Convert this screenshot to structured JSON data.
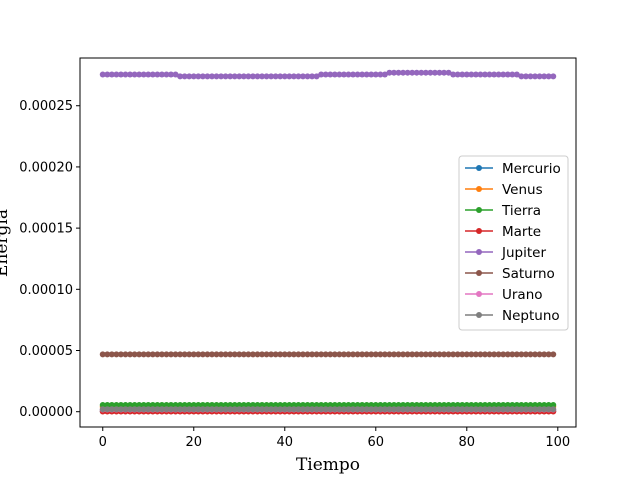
{
  "chart_data": {
    "type": "line",
    "xlabel": "Tiempo",
    "ylabel": "Energía",
    "xlim": [
      -5,
      104
    ],
    "ylim": [
      -1.25e-05,
      0.000289
    ],
    "xticks": [
      0,
      20,
      40,
      60,
      80,
      100
    ],
    "yticks": [
      0.0,
      5e-05,
      0.0001,
      0.00015,
      0.0002,
      0.00025
    ],
    "xtick_labels": [
      "0",
      "20",
      "40",
      "60",
      "80",
      "100"
    ],
    "ytick_labels": [
      "0.00000",
      "0.00005",
      "0.00010",
      "0.00015",
      "0.00020",
      "0.00025"
    ],
    "grid": false,
    "legend_position": "center-right",
    "marker": "circle",
    "x": {
      "start": 0,
      "end": 99,
      "step": 1
    },
    "series": [
      {
        "name": "Mercurio",
        "color": "#1f77b4",
        "value": 5e-07
      },
      {
        "name": "Venus",
        "color": "#ff7f0e",
        "value": 4e-06
      },
      {
        "name": "Tierra",
        "color": "#2ca02c",
        "value": 5.5e-06
      },
      {
        "name": "Marte",
        "color": "#d62728",
        "value": 2e-07
      },
      {
        "name": "Jupiter",
        "color": "#9467bd",
        "segments": [
          {
            "from": 0,
            "to": 16,
            "value": 0.0002755
          },
          {
            "from": 17,
            "to": 47,
            "value": 0.000274
          },
          {
            "from": 48,
            "to": 62,
            "value": 0.0002755
          },
          {
            "from": 63,
            "to": 76,
            "value": 0.000277
          },
          {
            "from": 77,
            "to": 91,
            "value": 0.0002755
          },
          {
            "from": 92,
            "to": 99,
            "value": 0.000274
          }
        ]
      },
      {
        "name": "Saturno",
        "color": "#8c564b",
        "value": 4.68e-05
      },
      {
        "name": "Urano",
        "color": "#e377c2",
        "value": 1.8e-06
      },
      {
        "name": "Neptuno",
        "color": "#7f7f7f",
        "value": 2e-06
      }
    ]
  }
}
